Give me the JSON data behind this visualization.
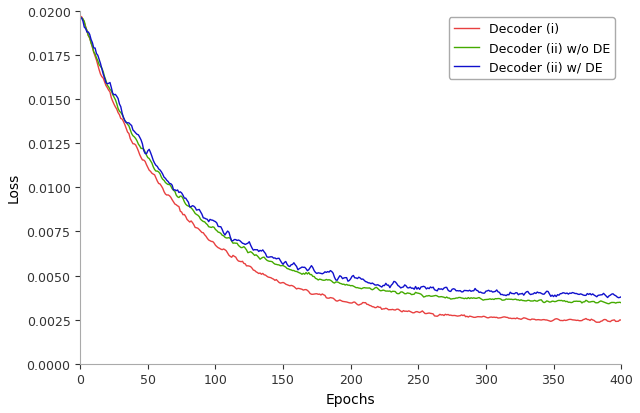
{
  "title": "",
  "xlabel": "Epochs",
  "ylabel": "Loss",
  "xlim": [
    0,
    400
  ],
  "ylim": [
    0.0,
    0.02
  ],
  "yticks": [
    0.0,
    0.0025,
    0.005,
    0.0075,
    0.01,
    0.0125,
    0.015,
    0.0175,
    0.02
  ],
  "xticks": [
    0,
    50,
    100,
    150,
    200,
    250,
    300,
    350,
    400
  ],
  "n_epochs": 400,
  "seed": 42,
  "line_colors": [
    "#e84040",
    "#44aa00",
    "#1010cc"
  ],
  "line_labels": [
    "Decoder (i)",
    "Decoder (ii) w/o DE",
    "Decoder (ii) w/ DE"
  ],
  "line_width": 1.0,
  "legend_loc": "upper right",
  "figsize": [
    6.4,
    4.14
  ],
  "dpi": 100,
  "background_color": "#ffffff"
}
